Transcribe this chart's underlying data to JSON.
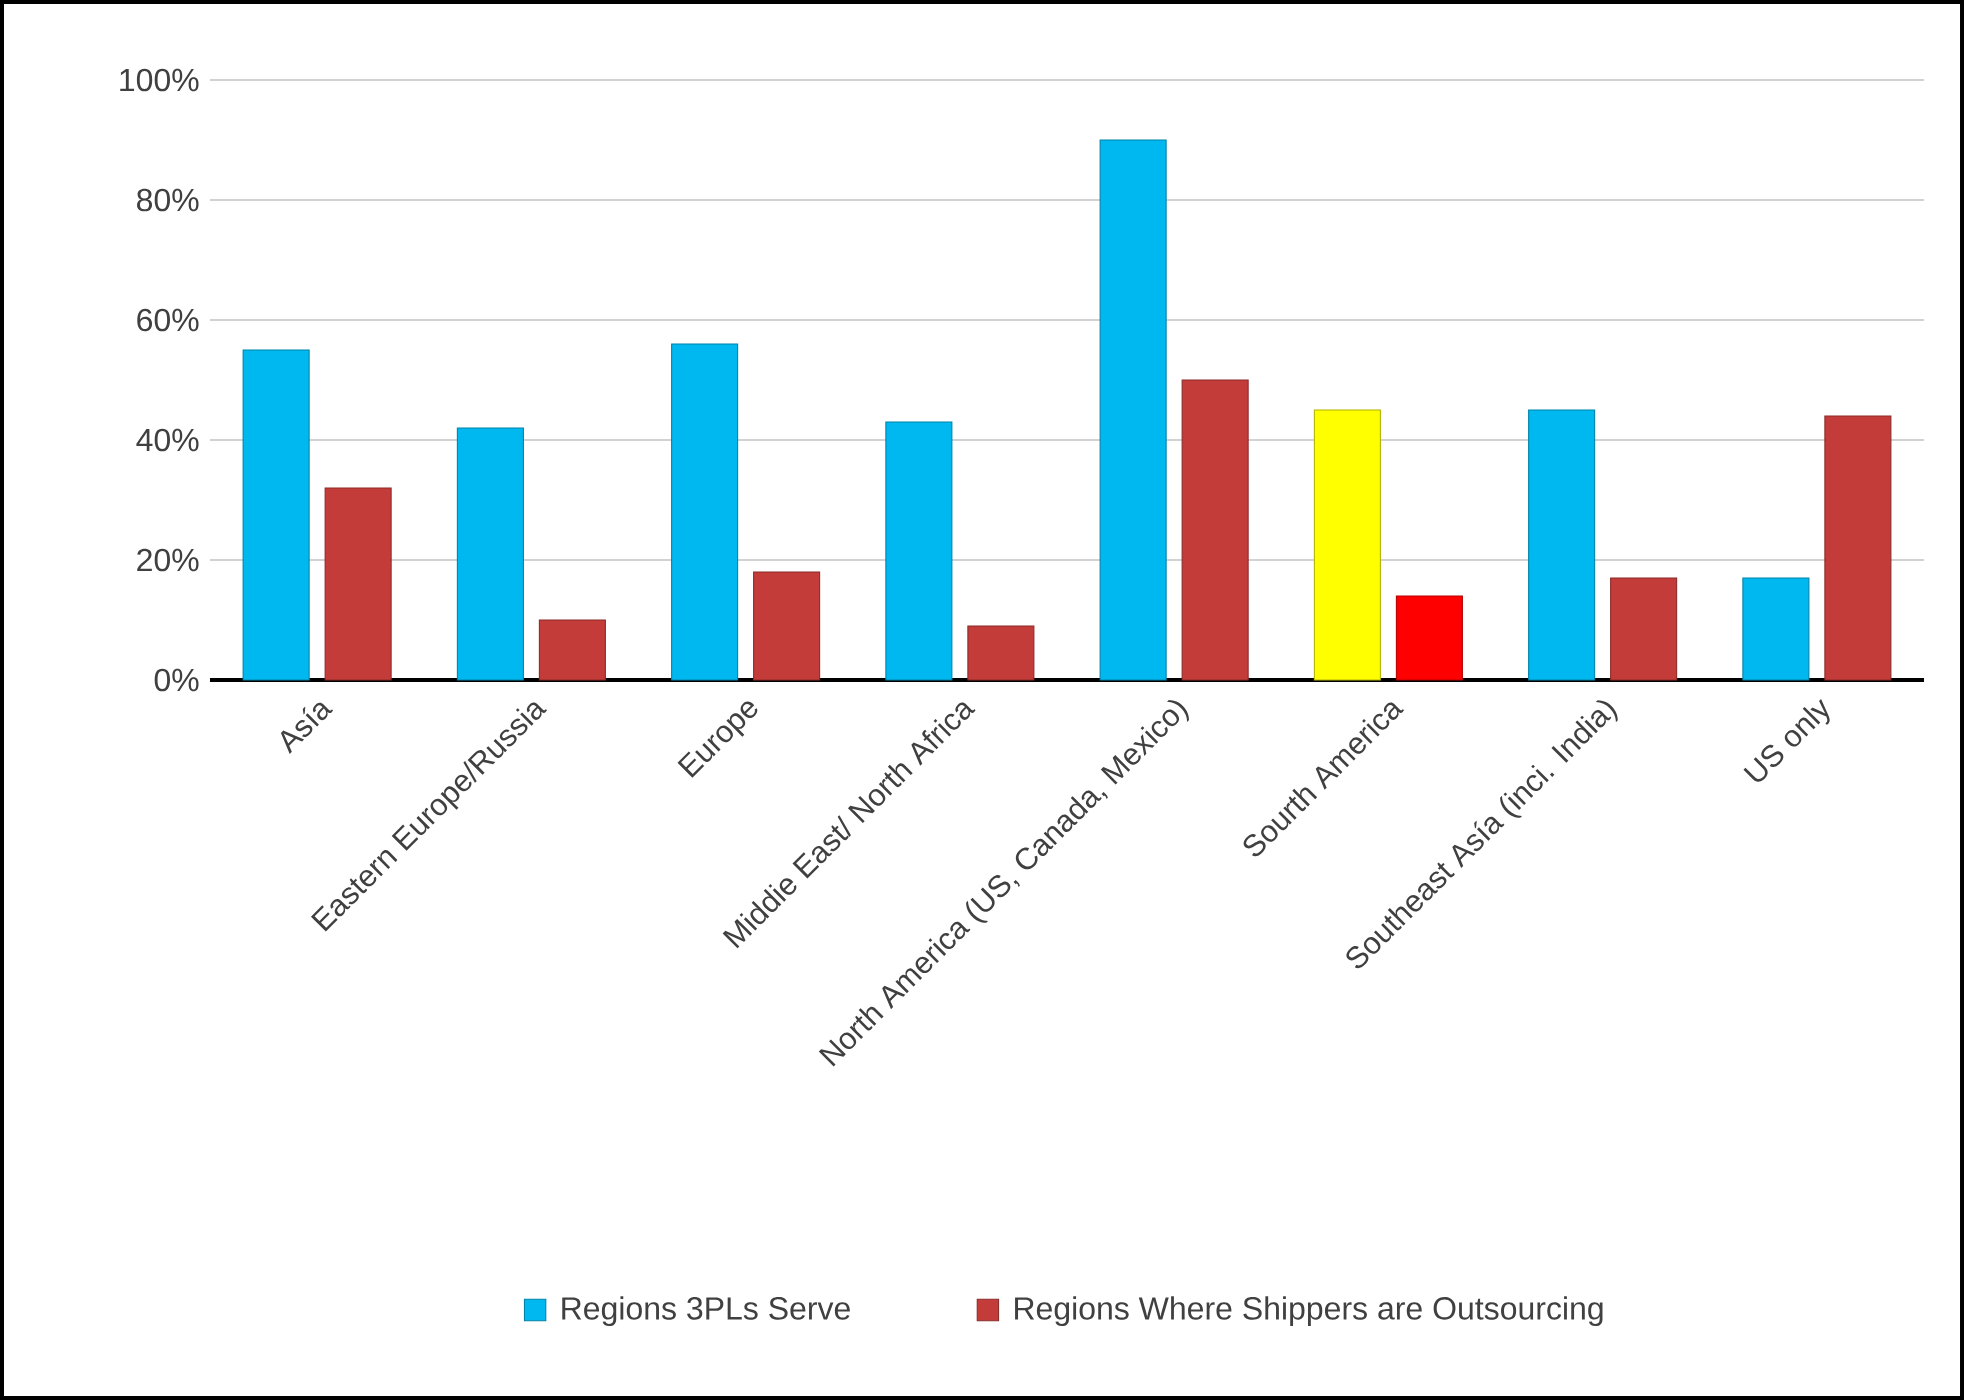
{
  "chart_data": {
    "type": "bar",
    "categories": [
      "Asía",
      "Eastern Europe/Russia",
      "Europe",
      "Middie East/ North Africa",
      "North America (US, Canada, Mexico)",
      "Sourth America",
      "Southeast Asía (inci. India)",
      "US only"
    ],
    "series": [
      {
        "name": "Regions 3PLs Serve",
        "color": "#00b8f0",
        "colors": [
          "#00b8f0",
          "#00b8f0",
          "#00b8f0",
          "#00b8f0",
          "#00b8f0",
          "#ffff00",
          "#00b8f0",
          "#00b8f0"
        ],
        "values": [
          55,
          42,
          56,
          43,
          90,
          45,
          45,
          17
        ]
      },
      {
        "name": "Regions Where Shippers are Outsourcing",
        "color": "#c43c3a",
        "colors": [
          "#c43c3a",
          "#c43c3a",
          "#c43c3a",
          "#c43c3a",
          "#c43c3a",
          "#ff0000",
          "#c43c3a",
          "#c43c3a"
        ],
        "values": [
          32,
          10,
          18,
          9,
          50,
          14,
          17,
          44
        ]
      }
    ],
    "ylim": [
      0,
      100
    ],
    "yticks": [
      {
        "value": 0,
        "label": "0%"
      },
      {
        "value": 20,
        "label": "20%"
      },
      {
        "value": 40,
        "label": "40%"
      },
      {
        "value": 60,
        "label": "60%"
      },
      {
        "value": 80,
        "label": "80%"
      },
      {
        "value": 100,
        "label": "100%"
      }
    ],
    "grid": "y",
    "legend": "bottom"
  }
}
